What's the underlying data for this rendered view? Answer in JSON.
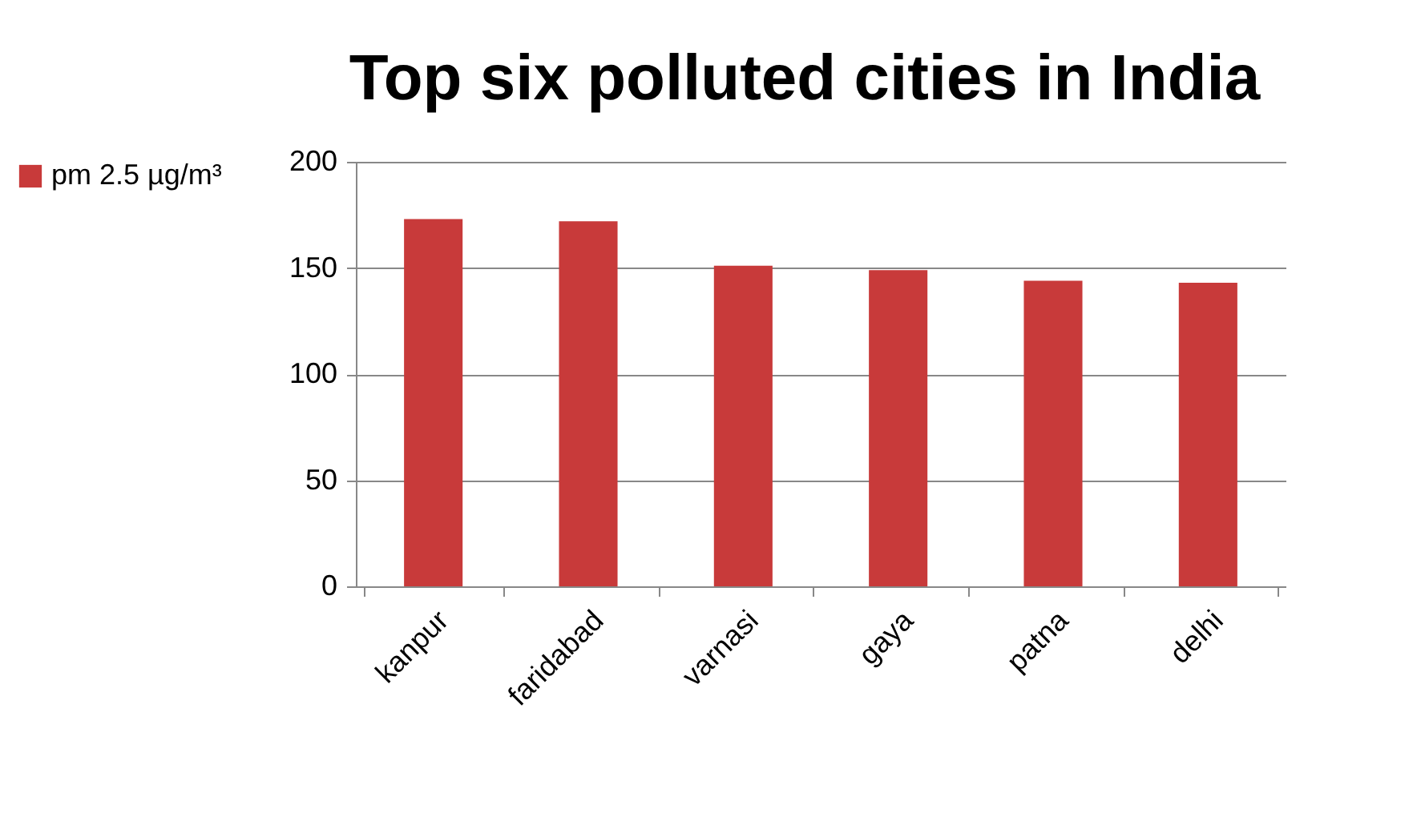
{
  "chart_data": {
    "type": "bar",
    "title": "Top six polluted cities in India",
    "categories": [
      "kanpur",
      "faridabad",
      "varnasi",
      "gaya",
      "patna",
      "delhi"
    ],
    "series": [
      {
        "name": "pm 2.5 µg/m³",
        "color": "#c83a3a",
        "values": [
          173,
          172,
          151,
          149,
          144,
          143
        ]
      }
    ],
    "ylim": [
      0,
      200
    ],
    "yticks": [
      0,
      50,
      100,
      150,
      200
    ],
    "grid": "y",
    "legend": "left"
  }
}
